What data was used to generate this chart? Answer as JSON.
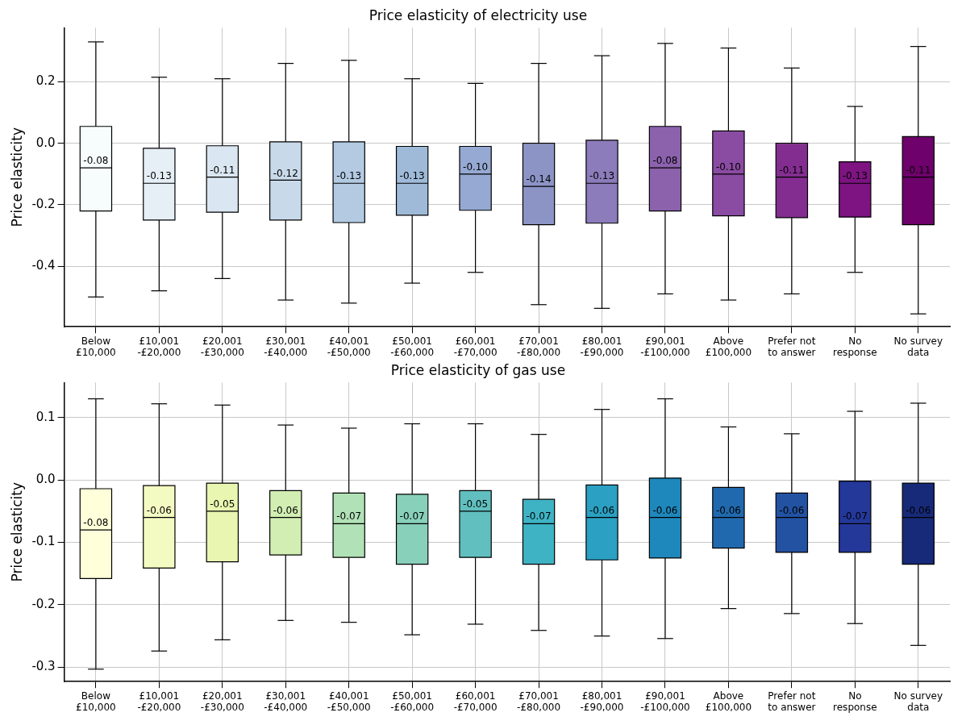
{
  "chart_data": [
    {
      "type": "box",
      "title": "Price elasticity of electricity use",
      "ylabel": "Price elasticity",
      "categories": [
        "Below\n£10,000",
        "£10,001\n-£20,000",
        "£20,001\n-£30,000",
        "£30,001\n-£40,000",
        "£40,001\n-£50,000",
        "£50,001\n-£60,000",
        "£60,001\n-£70,000",
        "£70,001\n-£80,000",
        "£80,001\n-£90,000",
        "£90,001\n-£100,000",
        "Above\n£100,000",
        "Prefer not\nto answer",
        "No\nresponse",
        "No survey\ndata"
      ],
      "colors": [
        "#f7fcfd",
        "#e6eff6",
        "#dae6f1",
        "#c8d9ea",
        "#b3cae2",
        "#9fbad9",
        "#95a9d2",
        "#8c94c6",
        "#8c7cbb",
        "#8c62ad",
        "#8a4ba2",
        "#842d91",
        "#7d1481",
        "#6e016b"
      ],
      "boxes": [
        {
          "low": -0.5,
          "q1": -0.22,
          "median": -0.08,
          "q3": 0.055,
          "high": 0.33
        },
        {
          "low": -0.48,
          "q1": -0.25,
          "median": -0.13,
          "q3": -0.016,
          "high": 0.215
        },
        {
          "low": -0.44,
          "q1": -0.224,
          "median": -0.11,
          "q3": -0.008,
          "high": 0.21
        },
        {
          "low": -0.51,
          "q1": -0.25,
          "median": -0.12,
          "q3": 0.005,
          "high": 0.26
        },
        {
          "low": -0.52,
          "q1": -0.258,
          "median": -0.13,
          "q3": 0.005,
          "high": 0.27
        },
        {
          "low": -0.455,
          "q1": -0.234,
          "median": -0.13,
          "q3": -0.01,
          "high": 0.21
        },
        {
          "low": -0.42,
          "q1": -0.218,
          "median": -0.1,
          "q3": -0.01,
          "high": 0.195
        },
        {
          "low": -0.525,
          "q1": -0.265,
          "median": -0.14,
          "q3": 0,
          "high": 0.26
        },
        {
          "low": -0.537,
          "q1": -0.26,
          "median": -0.13,
          "q3": 0.01,
          "high": 0.285
        },
        {
          "low": -0.49,
          "q1": -0.22,
          "median": -0.08,
          "q3": 0.055,
          "high": 0.325
        },
        {
          "low": -0.51,
          "q1": -0.236,
          "median": -0.1,
          "q3": 0.04,
          "high": 0.31
        },
        {
          "low": -0.49,
          "q1": -0.242,
          "median": -0.11,
          "q3": 0,
          "high": 0.245
        },
        {
          "low": -0.42,
          "q1": -0.24,
          "median": -0.13,
          "q3": -0.06,
          "high": 0.12
        },
        {
          "low": -0.555,
          "q1": -0.265,
          "median": -0.11,
          "q3": 0.022,
          "high": 0.315
        }
      ],
      "ylim": [
        -0.597,
        0.376
      ],
      "yticks": [
        -0.4,
        -0.2,
        {
          "value": 0,
          "label": "0.0"
        },
        0.2
      ],
      "grid": true,
      "data_labels": true,
      "value_labels": [
        "-0.08",
        "-0.13",
        "-0.11",
        "-0.12",
        "-0.13",
        "-0.13",
        "-0.10",
        "-0.14",
        "-0.13",
        "-0.08",
        "-0.10",
        "-0.11",
        "-0.13",
        "-0.11"
      ]
    },
    {
      "type": "box",
      "title": "Price elasticity of gas use",
      "ylabel": "Price elasticity",
      "categories": [
        "Below\n£10,000",
        "£10,001\n-£20,000",
        "£20,001\n-£30,000",
        "£30,001\n-£40,000",
        "£40,001\n-£50,000",
        "£50,001\n-£60,000",
        "£60,001\n-£70,000",
        "£70,001\n-£80,000",
        "£80,001\n-£90,000",
        "£90,001\n-£100,000",
        "Above\n£100,000",
        "Prefer not\nto answer",
        "No\nresponse",
        "No survey\ndata"
      ],
      "colors": [
        "#ffffd9",
        "#f4fbc2",
        "#e8f6b1",
        "#d2eeb3",
        "#b1e1b6",
        "#88d0ba",
        "#61c0bf",
        "#3eb3c4",
        "#2ba0c2",
        "#1e88bc",
        "#2069ae",
        "#2352a3",
        "#24389a",
        "#172a79"
      ],
      "boxes": [
        {
          "low": -0.303,
          "q1": -0.158,
          "median": -0.08,
          "q3": -0.014,
          "high": 0.13
        },
        {
          "low": -0.274,
          "q1": -0.141,
          "median": -0.06,
          "q3": -0.009,
          "high": 0.122
        },
        {
          "low": -0.256,
          "q1": -0.131,
          "median": -0.05,
          "q3": -0.005,
          "high": 0.12
        },
        {
          "low": -0.225,
          "q1": -0.12,
          "median": -0.06,
          "q3": -0.017,
          "high": 0.088
        },
        {
          "low": -0.228,
          "q1": -0.124,
          "median": -0.07,
          "q3": -0.021,
          "high": 0.083
        },
        {
          "low": -0.248,
          "q1": -0.135,
          "median": -0.07,
          "q3": -0.023,
          "high": 0.09
        },
        {
          "low": -0.231,
          "q1": -0.124,
          "median": -0.05,
          "q3": -0.017,
          "high": 0.09
        },
        {
          "low": -0.241,
          "q1": -0.135,
          "median": -0.07,
          "q3": -0.031,
          "high": 0.073
        },
        {
          "low": -0.25,
          "q1": -0.128,
          "median": -0.06,
          "q3": -0.008,
          "high": 0.113
        },
        {
          "low": -0.254,
          "q1": -0.125,
          "median": -0.06,
          "q3": 0.003,
          "high": 0.13
        },
        {
          "low": -0.206,
          "q1": -0.109,
          "median": -0.06,
          "q3": -0.012,
          "high": 0.085
        },
        {
          "low": -0.214,
          "q1": -0.116,
          "median": -0.06,
          "q3": -0.021,
          "high": 0.074
        },
        {
          "low": -0.23,
          "q1": -0.116,
          "median": -0.07,
          "q3": -0.002,
          "high": 0.11
        },
        {
          "low": -0.265,
          "q1": -0.135,
          "median": -0.06,
          "q3": -0.005,
          "high": 0.123
        }
      ],
      "ylim": [
        -0.323,
        0.156
      ],
      "yticks": [
        -0.3,
        -0.2,
        -0.1,
        {
          "value": 0,
          "label": "0.0"
        },
        0.1
      ],
      "grid": true,
      "data_labels": true,
      "value_labels": [
        "-0.08",
        "-0.06",
        "-0.05",
        "-0.06",
        "-0.07",
        "-0.07",
        "-0.05",
        "-0.07",
        "-0.06",
        "-0.06",
        "-0.06",
        "-0.06",
        "-0.07",
        "-0.06"
      ]
    }
  ]
}
